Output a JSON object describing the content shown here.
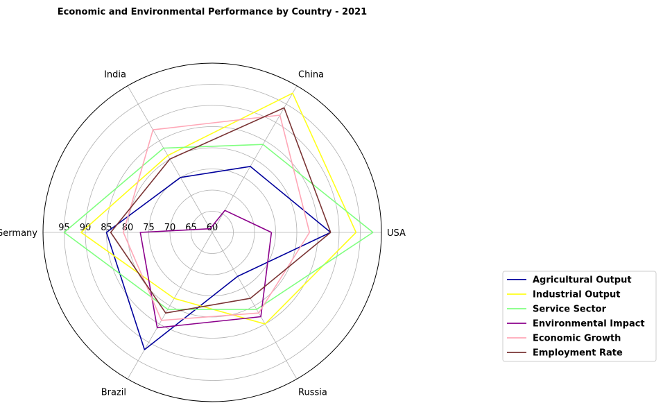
{
  "chart_data": {
    "type": "radar",
    "title": "Economic and Environmental Performance by Country - 2021",
    "categories": [
      "USA",
      "China",
      "India",
      "Germany",
      "Brazil",
      "Russia"
    ],
    "r_ticks": [
      "60",
      "65",
      "70",
      "75",
      "80",
      "85",
      "90",
      "95"
    ],
    "rlim": [
      60,
      100
    ],
    "grid": true,
    "legend_position": "lower-right",
    "series": [
      {
        "name": "Agricultural Output",
        "color": "#00009c",
        "values": [
          88,
          78,
          75,
          85,
          92,
          72
        ]
      },
      {
        "name": "Industrial Output",
        "color": "#ffff1a",
        "values": [
          94,
          98,
          81,
          91,
          78,
          85
        ]
      },
      {
        "name": "Service Sector",
        "color": "#80ff80",
        "values": [
          98,
          84,
          83,
          95,
          81,
          81
        ]
      },
      {
        "name": "Environmental Impact",
        "color": "#8b008b",
        "values": [
          74,
          66,
          61,
          77,
          86,
          83
        ]
      },
      {
        "name": "Economic Growth",
        "color": "#ffa7b7",
        "values": [
          83,
          92,
          88,
          81,
          84,
          82
        ]
      },
      {
        "name": "Employment Rate",
        "color": "#7a3434",
        "values": [
          88,
          94,
          80,
          84,
          82,
          78
        ]
      }
    ]
  }
}
